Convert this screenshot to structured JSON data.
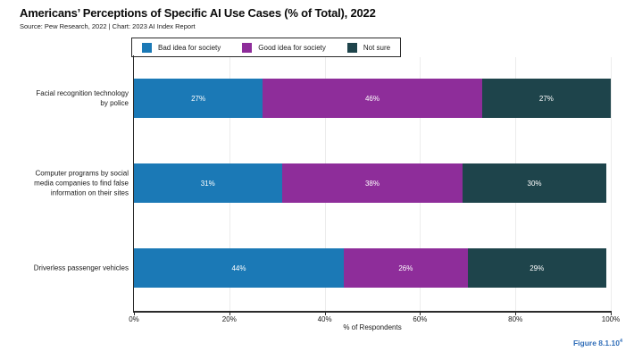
{
  "page": {
    "title": "Americans’ Perceptions of Specific AI Use Cases (% of Total), 2022",
    "source": "Source: Pew Research, 2022 | Chart: 2023 AI Index Report",
    "figure_label": "Figure 8.1.10",
    "figure_superscript": "4"
  },
  "colors": {
    "bad_idea": "#1b79b6",
    "good_idea": "#8e2d9a",
    "not_sure": "#1e444b",
    "axis": "#2b2b2b",
    "gridline": "#ececec",
    "figure_label": "#2f6db8",
    "bar_value_text": "#ffffff"
  },
  "chart_data": {
    "type": "bar",
    "orientation": "horizontal",
    "stacked": true,
    "title": "Americans’ Perceptions of Specific AI Use Cases (% of Total), 2022",
    "xlabel": "% of Respondents",
    "xlim": [
      0,
      100
    ],
    "x_tick_values": [
      0,
      20,
      40,
      60,
      80,
      100
    ],
    "x_tick_labels": [
      "0%",
      "20%",
      "40%",
      "60%",
      "80%",
      "100%"
    ],
    "grid": "vertical",
    "legend_position": "top",
    "categories": [
      "Facial recognition technology by police",
      "Computer programs by social media companies to find false information on their sites",
      "Driverless passenger vehicles"
    ],
    "category_label_lines": [
      [
        "Facial recognition technology",
        "by police"
      ],
      [
        "Computer programs by social",
        "media companies to find false",
        "information on their sites"
      ],
      [
        "Driverless passenger vehicles"
      ]
    ],
    "series": [
      {
        "name": "Bad idea for society",
        "color": "#1b79b6",
        "values": [
          27,
          31,
          44
        ]
      },
      {
        "name": "Good idea for society",
        "color": "#8e2d9a",
        "values": [
          46,
          38,
          26
        ]
      },
      {
        "name": "Not sure",
        "color": "#1e444b",
        "values": [
          27,
          30,
          29
        ]
      }
    ],
    "data_label_suffix": "%"
  }
}
